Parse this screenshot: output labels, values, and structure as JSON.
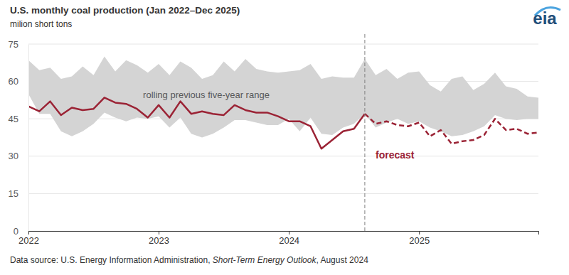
{
  "chart_data": {
    "type": "line",
    "title": "U.S. monthly coal production (Jan 2022–Dec 2025)",
    "subtitle": "milion short tons",
    "logo": "eia",
    "source": [
      "Data source: U.S. Energy Information Administration, ",
      "Short-Term Energy Outlook",
      ", August 2024"
    ],
    "categories": [
      "2022",
      null,
      null,
      null,
      null,
      null,
      null,
      null,
      null,
      null,
      null,
      null,
      "2023",
      null,
      null,
      null,
      null,
      null,
      null,
      null,
      null,
      null,
      null,
      null,
      "2024",
      null,
      null,
      null,
      null,
      null,
      null,
      null,
      null,
      null,
      null,
      null,
      "2025",
      null,
      null,
      null,
      null,
      null,
      null,
      null,
      null,
      null,
      null,
      null
    ],
    "ylim": [
      0,
      75
    ],
    "yticks": [
      0,
      15,
      30,
      45,
      60,
      75
    ],
    "grid": true,
    "series": [
      {
        "name": "rolling previous five-year range",
        "type": "area",
        "color": "#d4d4d4",
        "upper": [
          68.5,
          64.5,
          65.5,
          61,
          62,
          66,
          62.5,
          70,
          64,
          68.5,
          66.5,
          63.5,
          67,
          62.5,
          68,
          65.5,
          61,
          62.5,
          68,
          64,
          69,
          65,
          64,
          63.5,
          64,
          64.5,
          67,
          61,
          62,
          61.5,
          61.5,
          69,
          62.5,
          65,
          61,
          63.5,
          64,
          58.5,
          56,
          61,
          62,
          56.5,
          59,
          63.5,
          58,
          57,
          54,
          53.5
        ],
        "lower": [
          55,
          47,
          47,
          40,
          38,
          40,
          43,
          47.5,
          45.5,
          44,
          45.5,
          45,
          46,
          41.5,
          45.5,
          39,
          37.5,
          39,
          41.5,
          44.5,
          44.5,
          43.5,
          42.5,
          42.5,
          45,
          40,
          45.5,
          39,
          38.5,
          41.5,
          43,
          47,
          41.5,
          43.5,
          45,
          43,
          44,
          41.5,
          40,
          38,
          38.5,
          40,
          42,
          46.5,
          45,
          44.5,
          45,
          45
        ]
      },
      {
        "type": "line",
        "color": "#9b2335",
        "line_style": "solid",
        "values": [
          50,
          48,
          52,
          46.5,
          49.5,
          48.5,
          49,
          53.5,
          51.5,
          51,
          49,
          45.5,
          50.5,
          45.5,
          52,
          47,
          48,
          47,
          46.5,
          50.5,
          48.5,
          47.5,
          47.5,
          46,
          44,
          44,
          42,
          33,
          36.5,
          40,
          41,
          47,
          null,
          null,
          null,
          null,
          null,
          null,
          null,
          null,
          null,
          null,
          null,
          null,
          null,
          null,
          null,
          null
        ]
      },
      {
        "name": "forecast",
        "type": "line",
        "color": "#9b2335",
        "line_style": "dashed",
        "values": [
          null,
          null,
          null,
          null,
          null,
          null,
          null,
          null,
          null,
          null,
          null,
          null,
          null,
          null,
          null,
          null,
          null,
          null,
          null,
          null,
          null,
          null,
          null,
          null,
          null,
          null,
          null,
          null,
          null,
          null,
          null,
          47,
          43,
          44,
          42.5,
          42,
          43.5,
          38,
          40.5,
          35,
          36,
          36.5,
          38.5,
          45,
          40.5,
          41,
          39,
          39.5
        ]
      }
    ]
  }
}
